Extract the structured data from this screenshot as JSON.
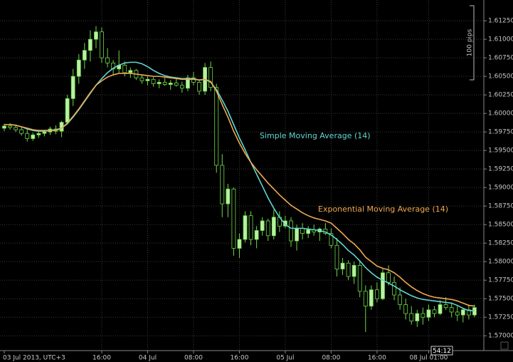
{
  "chart_data": {
    "type": "candlestick",
    "categories": [
      "03 Jul 2013, UTC+3",
      null,
      null,
      null,
      null,
      null,
      null,
      null,
      null,
      null,
      null,
      null,
      null,
      null,
      null,
      null,
      null,
      "16:00",
      null,
      null,
      null,
      null,
      null,
      null,
      null,
      "04 Jul",
      null,
      null,
      null,
      null,
      null,
      null,
      null,
      "08:00",
      null,
      null,
      null,
      null,
      null,
      null,
      null,
      "16:00",
      null,
      null,
      null,
      null,
      null,
      null,
      null,
      "05 Jul",
      null,
      null,
      null,
      null,
      null,
      null,
      null,
      "08:00",
      null,
      null,
      null,
      null,
      null,
      null,
      null,
      "16:00",
      null,
      null,
      null,
      null,
      null,
      null,
      null,
      null,
      "08 Jul 01:00",
      null,
      null,
      null,
      null,
      null,
      null,
      null,
      null
    ],
    "open": [
      1.598,
      1.5983,
      1.5981,
      1.5978,
      1.5973,
      1.5966,
      1.5971,
      1.5973,
      1.5975,
      1.5979,
      1.5976,
      1.5988,
      1.602,
      1.605,
      1.6072,
      1.6085,
      1.61,
      1.611,
      1.6075,
      1.6068,
      1.606,
      1.6065,
      1.6055,
      1.6058,
      1.6048,
      1.6044,
      1.6046,
      1.604,
      1.6042,
      1.6039,
      1.6041,
      1.6038,
      1.6034,
      1.6048,
      1.6042,
      1.603,
      1.6062,
      1.6035,
      1.593,
      1.5878,
      1.5898,
      1.5818,
      1.583,
      1.5862,
      1.583,
      1.5842,
      1.5855,
      1.5835,
      1.586,
      1.5848,
      1.5855,
      1.5828,
      1.5845,
      1.5838,
      1.5843,
      1.584,
      1.5844,
      1.5838,
      1.5822,
      1.579,
      1.5798,
      1.578,
      1.5795,
      1.576,
      1.574,
      1.5762,
      1.575,
      1.5785,
      1.5772,
      1.5755,
      1.5742,
      1.573,
      1.572,
      1.573,
      1.5725,
      1.5735,
      1.573,
      1.5742,
      1.5738,
      1.5732,
      1.5728,
      1.5735,
      1.5728
    ],
    "high": [
      1.5986,
      1.5987,
      1.5985,
      1.5982,
      1.5978,
      1.5974,
      1.5977,
      1.5978,
      1.5982,
      1.5984,
      1.599,
      1.6025,
      1.606,
      1.608,
      1.6095,
      1.6112,
      1.6118,
      1.6116,
      1.6088,
      1.6072,
      1.6085,
      1.607,
      1.6062,
      1.606,
      1.6052,
      1.605,
      1.6049,
      1.6046,
      1.6048,
      1.6045,
      1.6048,
      1.6043,
      1.6052,
      1.6056,
      1.6046,
      1.6068,
      1.607,
      1.604,
      1.5945,
      1.5905,
      1.59,
      1.5838,
      1.5868,
      1.5868,
      1.5848,
      1.586,
      1.5858,
      1.587,
      1.5868,
      1.5862,
      1.586,
      1.585,
      1.5852,
      1.5848,
      1.585,
      1.5846,
      1.5852,
      1.5845,
      1.5832,
      1.5805,
      1.5802,
      1.58,
      1.58,
      1.5768,
      1.5768,
      1.5772,
      1.579,
      1.5795,
      1.578,
      1.5765,
      1.575,
      1.574,
      1.5735,
      1.5738,
      1.5742,
      1.574,
      1.5748,
      1.5752,
      1.5745,
      1.574,
      1.5738,
      1.5742,
      1.5742
    ],
    "low": [
      1.5976,
      1.5978,
      1.5975,
      1.597,
      1.5962,
      1.5963,
      1.5967,
      1.5969,
      1.5971,
      1.5972,
      1.5968,
      1.5985,
      1.601,
      1.604,
      1.606,
      1.607,
      1.6088,
      1.6068,
      1.6062,
      1.6052,
      1.6055,
      1.605,
      1.6048,
      1.6045,
      1.604,
      1.6038,
      1.6036,
      1.6034,
      1.6037,
      1.6032,
      1.6036,
      1.6028,
      1.603,
      1.6038,
      1.6025,
      1.6025,
      1.603,
      1.592,
      1.586,
      1.586,
      1.5808,
      1.5805,
      1.5826,
      1.5822,
      1.5818,
      1.5835,
      1.5828,
      1.583,
      1.584,
      1.5845,
      1.582,
      1.5815,
      1.583,
      1.5832,
      1.5835,
      1.5828,
      1.5836,
      1.5818,
      1.578,
      1.5782,
      1.5775,
      1.577,
      1.5752,
      1.5705,
      1.5735,
      1.5745,
      1.5748,
      1.5768,
      1.5748,
      1.5735,
      1.5722,
      1.5715,
      1.5712,
      1.5715,
      1.572,
      1.5725,
      1.5728,
      1.5735,
      1.5725,
      1.572,
      1.5718,
      1.5722,
      1.5725
    ],
    "close": [
      1.5983,
      1.5981,
      1.5978,
      1.5973,
      1.5966,
      1.5971,
      1.5973,
      1.5975,
      1.5979,
      1.5976,
      1.5988,
      1.602,
      1.605,
      1.6072,
      1.6085,
      1.61,
      1.611,
      1.6075,
      1.6068,
      1.606,
      1.6065,
      1.6055,
      1.6058,
      1.6048,
      1.6044,
      1.6046,
      1.604,
      1.6042,
      1.6039,
      1.6041,
      1.6038,
      1.6034,
      1.6048,
      1.6042,
      1.603,
      1.6062,
      1.6035,
      1.593,
      1.5878,
      1.5898,
      1.5818,
      1.583,
      1.5862,
      1.583,
      1.5842,
      1.5855,
      1.5835,
      1.586,
      1.5848,
      1.5855,
      1.5828,
      1.5845,
      1.5838,
      1.5843,
      1.584,
      1.5844,
      1.5838,
      1.5822,
      1.579,
      1.5798,
      1.578,
      1.5795,
      1.576,
      1.574,
      1.5762,
      1.575,
      1.5785,
      1.5772,
      1.5755,
      1.5742,
      1.573,
      1.572,
      1.573,
      1.5725,
      1.5735,
      1.573,
      1.5742,
      1.5738,
      1.5732,
      1.5728,
      1.5735,
      1.5728,
      1.5738
    ],
    "up_color": "#b9f0a4",
    "down_color": "#000000",
    "wick_color": "#6fd84a",
    "overlays": [
      {
        "name": "Simple Moving Average (14)",
        "color": "#62d6d2",
        "values": [
          1.5985,
          1.5985,
          1.5984,
          1.5982,
          1.5979,
          1.5977,
          1.5976,
          1.5976,
          1.5977,
          1.5978,
          1.598,
          1.5986,
          1.5995,
          1.6005,
          1.6016,
          1.6027,
          1.6038,
          1.6047,
          1.6055,
          1.6061,
          1.6065,
          1.6068,
          1.6069,
          1.6069,
          1.6067,
          1.6063,
          1.6058,
          1.6054,
          1.6051,
          1.6049,
          1.6048,
          1.6047,
          1.6047,
          1.6047,
          1.6045,
          1.6046,
          1.6042,
          1.6032,
          1.6018,
          1.6003,
          1.5985,
          1.5967,
          1.5951,
          1.5934,
          1.5918,
          1.5902,
          1.5886,
          1.5872,
          1.586,
          1.585,
          1.5845,
          1.5845,
          1.5845,
          1.5844,
          1.5843,
          1.5842,
          1.584,
          1.5836,
          1.583,
          1.5823,
          1.5815,
          1.5809,
          1.5801,
          1.5792,
          1.5785,
          1.5779,
          1.5775,
          1.5771,
          1.5767,
          1.5762,
          1.5758,
          1.5754,
          1.5751,
          1.5749,
          1.5748,
          1.5747,
          1.5746,
          1.5745,
          1.5744,
          1.5741,
          1.5737,
          1.5734,
          1.5734
        ]
      },
      {
        "name": "Exponential Moving Average (14)",
        "color": "#f0a850",
        "values": [
          1.5985,
          1.5985,
          1.5984,
          1.5982,
          1.598,
          1.5978,
          1.5977,
          1.5977,
          1.5977,
          1.5977,
          1.598,
          1.5987,
          1.5996,
          1.6006,
          1.6017,
          1.6028,
          1.6038,
          1.6044,
          1.6049,
          1.6052,
          1.6054,
          1.6054,
          1.6054,
          1.6053,
          1.6052,
          1.6051,
          1.605,
          1.605,
          1.6049,
          1.6048,
          1.6047,
          1.6046,
          1.6046,
          1.6046,
          1.6045,
          1.6046,
          1.6043,
          1.603,
          1.6012,
          1.5995,
          1.5976,
          1.596,
          1.5946,
          1.5934,
          1.5924,
          1.5915,
          1.5906,
          1.5898,
          1.589,
          1.5883,
          1.5876,
          1.5871,
          1.5866,
          1.5862,
          1.5859,
          1.5857,
          1.5855,
          1.5852,
          1.5845,
          1.5838,
          1.583,
          1.5824,
          1.5816,
          1.5806,
          1.58,
          1.5794,
          1.5791,
          1.5789,
          1.5785,
          1.5779,
          1.5772,
          1.5766,
          1.5761,
          1.5757,
          1.5754,
          1.5752,
          1.5751,
          1.575,
          1.5749,
          1.5747,
          1.5744,
          1.5741,
          1.574
        ]
      }
    ],
    "ylim": [
      1.568,
      1.6153
    ],
    "yticks": [
      {
        "value": 1.57,
        "label": "1.57000"
      },
      {
        "value": 1.5725,
        "label": "1.57250"
      },
      {
        "value": 1.575,
        "label": "1.57500"
      },
      {
        "value": 1.5775,
        "label": "1.57750"
      },
      {
        "value": 1.58,
        "label": "1.58000"
      },
      {
        "value": 1.5825,
        "label": "1.58250"
      },
      {
        "value": 1.585,
        "label": "1.58500"
      },
      {
        "value": 1.5875,
        "label": "1.58750"
      },
      {
        "value": 1.59,
        "label": "1.59000"
      },
      {
        "value": 1.5925,
        "label": "1.59250"
      },
      {
        "value": 1.595,
        "label": "1.59500"
      },
      {
        "value": 1.5975,
        "label": "1.59750"
      },
      {
        "value": 1.6,
        "label": "1.60000"
      },
      {
        "value": 1.6025,
        "label": "1.60250"
      },
      {
        "value": 1.605,
        "label": "1.60500"
      },
      {
        "value": 1.6075,
        "label": "1.60750"
      },
      {
        "value": 1.61,
        "label": "1.61000"
      },
      {
        "value": 1.6125,
        "label": "1.61250"
      }
    ],
    "grid": true,
    "scale_label": "100 pips",
    "countdown": "54:12"
  }
}
